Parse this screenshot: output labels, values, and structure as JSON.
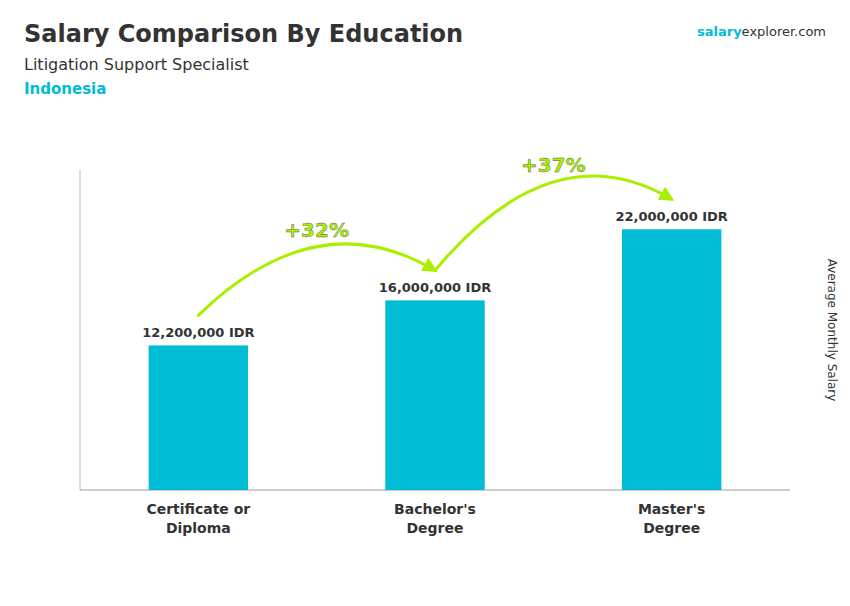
{
  "chart_data": {
    "type": "bar",
    "title": "Salary Comparison By Education",
    "subtitle": "Litigation Support Specialist",
    "country": "Indonesia",
    "source": [
      "salary",
      "explorer.com"
    ],
    "ylabel": "Average Monthly Salary",
    "categories": [
      "Certificate or\nDiploma",
      "Bachelor's\nDegree",
      "Master's\nDegree"
    ],
    "values": [
      12200000,
      16000000,
      22000000
    ],
    "value_labels": [
      "12,200,000 IDR",
      "16,000,000 IDR",
      "22,000,000 IDR"
    ],
    "data_labels": true,
    "color": "#00bcd4",
    "changes": {
      "labels": [
        "+32%",
        "+37%"
      ],
      "color": "#aaee00"
    },
    "ylim": [
      0,
      27000000
    ],
    "tick_labels": false,
    "grid": false
  }
}
